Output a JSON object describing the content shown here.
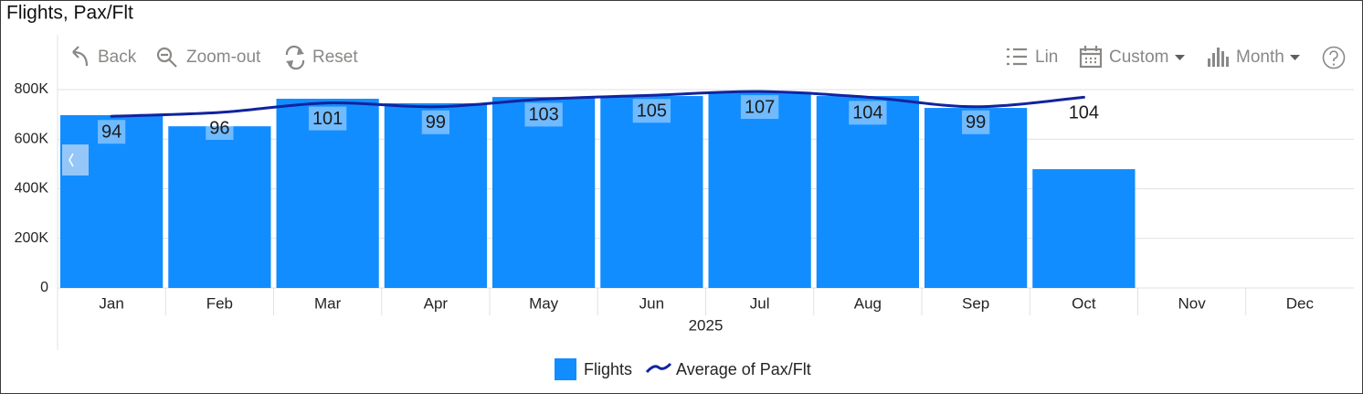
{
  "title": "Flights, Pax/Flt",
  "toolbar": {
    "left": [
      "Back",
      "Zoom-out",
      "Reset"
    ],
    "right": [
      "Lin",
      "Custom",
      "Month"
    ]
  },
  "chart_data": {
    "type": "bar-line",
    "categories": [
      "Jan",
      "Feb",
      "Mar",
      "Apr",
      "May",
      "Jun",
      "Jul",
      "Aug",
      "Sep",
      "Oct",
      "Nov",
      "Dec"
    ],
    "xlabel": "2025",
    "series": [
      {
        "name": "Flights",
        "type": "bar",
        "color": "#118dff",
        "values": [
          697000,
          652000,
          763000,
          745000,
          770000,
          774000,
          789000,
          774000,
          726000,
          479000,
          null,
          null
        ]
      },
      {
        "name": "Average of Pax/Flt",
        "type": "line",
        "axis": "y2",
        "color": "#12239e",
        "values": [
          94,
          96,
          101,
          99,
          103,
          105,
          107,
          104,
          99,
          104,
          null,
          null
        ]
      }
    ],
    "ylim": [
      0,
      800000
    ],
    "yticks": [
      0,
      {
        "value": 200000,
        "label": "200K"
      },
      {
        "value": 400000,
        "label": "400K"
      },
      {
        "value": 600000,
        "label": "600K"
      },
      {
        "value": 800000,
        "label": "800K"
      }
    ],
    "y2lim": [
      4,
      108
    ],
    "grid": true,
    "legend": "bottom"
  }
}
